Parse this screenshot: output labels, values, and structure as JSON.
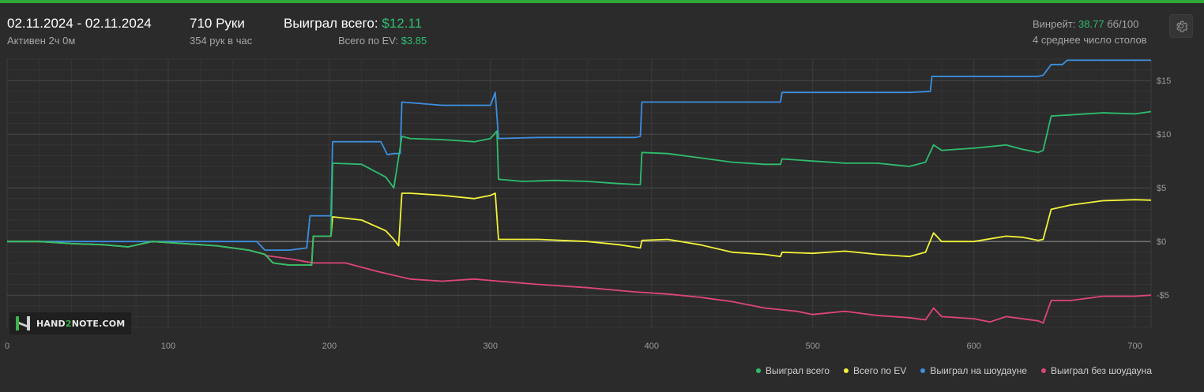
{
  "header": {
    "date_range": "02.11.2024 - 02.11.2024",
    "active_time": "Активен 2ч 0м",
    "hands": "710 Руки",
    "hands_per_hour": "354 рук в час",
    "won_total_label": "Выиграл всего:",
    "won_total_value": "$12.11",
    "ev_total_label": "Всего по EV:",
    "ev_total_value": "$3.85",
    "winrate_label": "Винрейт:",
    "winrate_value": "38.77",
    "winrate_unit": "бб/100",
    "avg_tables": "4 среднее число столов"
  },
  "settings_icon": "gear-icon",
  "logo": {
    "text_pre": "HAND",
    "text_two": "2",
    "text_post": "NOTE.COM"
  },
  "colors": {
    "background": "#2b2b2b",
    "accent_bar": "#2fa53a",
    "won_total": "#2ebd6e",
    "ev": "#f2f23a",
    "showdown": "#3d8fe0",
    "non_showdown": "#e0457a",
    "grid": "#444444",
    "zero_line": "#8a8a8a"
  },
  "chart_data": {
    "type": "line",
    "x_range": [
      0,
      710
    ],
    "y_range": [
      -8,
      17
    ],
    "x_ticks": [
      0,
      100,
      200,
      300,
      400,
      500,
      600,
      700
    ],
    "x_tick_labels": [
      "0",
      "100",
      "200",
      "300",
      "400",
      "500",
      "600",
      "700"
    ],
    "y_ticks": [
      15,
      10,
      5,
      0,
      -5
    ],
    "y_tick_labels": [
      "$15",
      "$10",
      "$5",
      "$0",
      "-$5"
    ],
    "legend_position": "bottom-right",
    "series": [
      {
        "name": "Выиграл всего",
        "color": "#2ebd6e",
        "points": [
          [
            0,
            0
          ],
          [
            20,
            0
          ],
          [
            40,
            -0.2
          ],
          [
            60,
            -0.3
          ],
          [
            75,
            -0.5
          ],
          [
            90,
            0
          ],
          [
            110,
            -0.2
          ],
          [
            130,
            -0.4
          ],
          [
            150,
            -0.8
          ],
          [
            160,
            -1.2
          ],
          [
            165,
            -2
          ],
          [
            175,
            -2.2
          ],
          [
            189,
            -2.2
          ],
          [
            190,
            0.5
          ],
          [
            201,
            0.5
          ],
          [
            202,
            7.3
          ],
          [
            220,
            7.2
          ],
          [
            235,
            6
          ],
          [
            240,
            5
          ],
          [
            245,
            9.8
          ],
          [
            250,
            9.6
          ],
          [
            270,
            9.5
          ],
          [
            290,
            9.3
          ],
          [
            300,
            9.6
          ],
          [
            304,
            10.3
          ],
          [
            305,
            5.8
          ],
          [
            320,
            5.6
          ],
          [
            340,
            5.7
          ],
          [
            360,
            5.6
          ],
          [
            380,
            5.4
          ],
          [
            393,
            5.3
          ],
          [
            394,
            8.3
          ],
          [
            410,
            8.2
          ],
          [
            430,
            7.8
          ],
          [
            450,
            7.4
          ],
          [
            470,
            7.2
          ],
          [
            480,
            7.2
          ],
          [
            481,
            7.7
          ],
          [
            500,
            7.5
          ],
          [
            520,
            7.3
          ],
          [
            540,
            7.3
          ],
          [
            560,
            7
          ],
          [
            570,
            7.4
          ],
          [
            575,
            9
          ],
          [
            580,
            8.5
          ],
          [
            600,
            8.7
          ],
          [
            620,
            9
          ],
          [
            630,
            8.6
          ],
          [
            640,
            8.3
          ],
          [
            643,
            8.5
          ],
          [
            648,
            11.7
          ],
          [
            660,
            11.8
          ],
          [
            680,
            12
          ],
          [
            700,
            11.9
          ],
          [
            710,
            12.11
          ]
        ]
      },
      {
        "name": "Всего по EV",
        "color": "#f2f23a",
        "points": [
          [
            0,
            0
          ],
          [
            20,
            0
          ],
          [
            40,
            -0.2
          ],
          [
            60,
            -0.3
          ],
          [
            75,
            -0.5
          ],
          [
            90,
            0
          ],
          [
            110,
            -0.2
          ],
          [
            130,
            -0.4
          ],
          [
            150,
            -0.8
          ],
          [
            160,
            -1.2
          ],
          [
            165,
            -2
          ],
          [
            175,
            -2.2
          ],
          [
            189,
            -2.2
          ],
          [
            190,
            0.5
          ],
          [
            201,
            0.5
          ],
          [
            202,
            2.3
          ],
          [
            220,
            2
          ],
          [
            235,
            1
          ],
          [
            240,
            0.2
          ],
          [
            243,
            -0.4
          ],
          [
            245,
            4.5
          ],
          [
            250,
            4.5
          ],
          [
            270,
            4.3
          ],
          [
            290,
            4
          ],
          [
            300,
            4.3
          ],
          [
            303,
            4.5
          ],
          [
            305,
            0.2
          ],
          [
            330,
            0.2
          ],
          [
            360,
            0
          ],
          [
            380,
            -0.3
          ],
          [
            393,
            -0.6
          ],
          [
            394,
            0.1
          ],
          [
            410,
            0.2
          ],
          [
            430,
            -0.3
          ],
          [
            450,
            -1
          ],
          [
            470,
            -1.2
          ],
          [
            480,
            -1.4
          ],
          [
            481,
            -1
          ],
          [
            500,
            -1.1
          ],
          [
            520,
            -0.9
          ],
          [
            540,
            -1.2
          ],
          [
            560,
            -1.4
          ],
          [
            570,
            -1
          ],
          [
            575,
            0.8
          ],
          [
            580,
            0
          ],
          [
            600,
            0
          ],
          [
            620,
            0.5
          ],
          [
            630,
            0.4
          ],
          [
            640,
            0.1
          ],
          [
            643,
            0.2
          ],
          [
            648,
            3
          ],
          [
            660,
            3.4
          ],
          [
            680,
            3.8
          ],
          [
            700,
            3.9
          ],
          [
            710,
            3.85
          ]
        ]
      },
      {
        "name": "Выиграл на шоудауне",
        "color": "#3d8fe0",
        "points": [
          [
            0,
            0
          ],
          [
            50,
            0
          ],
          [
            100,
            0
          ],
          [
            155,
            0
          ],
          [
            160,
            -0.8
          ],
          [
            175,
            -0.8
          ],
          [
            186,
            -0.6
          ],
          [
            188,
            2.4
          ],
          [
            201,
            2.4
          ],
          [
            202,
            9.3
          ],
          [
            232,
            9.3
          ],
          [
            236,
            8.1
          ],
          [
            240,
            8.2
          ],
          [
            244,
            8.2
          ],
          [
            245,
            13
          ],
          [
            270,
            12.7
          ],
          [
            300,
            12.7
          ],
          [
            303,
            13.9
          ],
          [
            305,
            9.6
          ],
          [
            330,
            9.7
          ],
          [
            360,
            9.7
          ],
          [
            390,
            9.7
          ],
          [
            393,
            9.8
          ],
          [
            394,
            13
          ],
          [
            430,
            13
          ],
          [
            470,
            13
          ],
          [
            480,
            13
          ],
          [
            481,
            13.9
          ],
          [
            520,
            13.9
          ],
          [
            560,
            13.9
          ],
          [
            573,
            14
          ],
          [
            574,
            15.4
          ],
          [
            620,
            15.4
          ],
          [
            640,
            15.4
          ],
          [
            643,
            15.5
          ],
          [
            648,
            16.5
          ],
          [
            655,
            16.5
          ],
          [
            658,
            16.9
          ],
          [
            680,
            16.9
          ],
          [
            710,
            16.9
          ]
        ]
      },
      {
        "name": "Выиграл без шоудауна",
        "color": "#e0457a",
        "points": [
          [
            160,
            -1.3
          ],
          [
            175,
            -1.6
          ],
          [
            190,
            -2
          ],
          [
            210,
            -2
          ],
          [
            230,
            -2.8
          ],
          [
            250,
            -3.5
          ],
          [
            270,
            -3.7
          ],
          [
            290,
            -3.5
          ],
          [
            305,
            -3.7
          ],
          [
            330,
            -4
          ],
          [
            360,
            -4.3
          ],
          [
            390,
            -4.7
          ],
          [
            410,
            -4.9
          ],
          [
            430,
            -5.2
          ],
          [
            450,
            -5.6
          ],
          [
            470,
            -6.2
          ],
          [
            490,
            -6.5
          ],
          [
            500,
            -6.8
          ],
          [
            520,
            -6.5
          ],
          [
            540,
            -6.9
          ],
          [
            560,
            -7.1
          ],
          [
            570,
            -7.3
          ],
          [
            575,
            -6.2
          ],
          [
            580,
            -7
          ],
          [
            600,
            -7.2
          ],
          [
            610,
            -7.5
          ],
          [
            620,
            -7
          ],
          [
            640,
            -7.4
          ],
          [
            643,
            -7.6
          ],
          [
            648,
            -5.5
          ],
          [
            660,
            -5.5
          ],
          [
            680,
            -5.1
          ],
          [
            700,
            -5.1
          ],
          [
            710,
            -5
          ]
        ]
      }
    ]
  }
}
